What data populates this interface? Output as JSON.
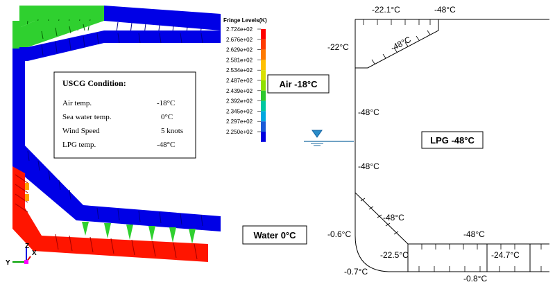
{
  "legend": {
    "title": "Fringe Levels(K)",
    "levels": [
      "2.724e+02",
      "2.676e+02",
      "2.629e+02",
      "2.581e+02",
      "2.534e+02",
      "2.487e+02",
      "2.439e+02",
      "2.392e+02",
      "2.345e+02",
      "2.297e+02",
      "2.250e+02"
    ],
    "colors": [
      "#ff0000",
      "#ff3a00",
      "#ff7a00",
      "#ffc000",
      "#d8e000",
      "#8fe000",
      "#2ec82e",
      "#00c8a0",
      "#00a8e0",
      "#1a5ad8",
      "#0000e0"
    ]
  },
  "uscg": {
    "title": "USCG Condition:",
    "rows": [
      {
        "label": "Air temp.",
        "value": "-18°C"
      },
      {
        "label": "Sea water temp.",
        "value": "0°C"
      },
      {
        "label": "Wind Speed",
        "value": "5 knots"
      },
      {
        "label": "LPG temp.",
        "value": "-48°C"
      }
    ]
  },
  "boxes": {
    "air": "Air -18°C",
    "water": "Water 0°C",
    "lpg": "LPG -48°C"
  },
  "axes": {
    "z": "Z",
    "y": "Y",
    "x": "X"
  },
  "section_labels": {
    "top_center": "-22.1°C",
    "top_right": "-48°C",
    "top_left": "-22°C",
    "hopper": "-48°C",
    "side_upper": "-48°C",
    "side_lower": "-48°C",
    "bilge_hopper": "-48°C",
    "bilge_side": "-0.6°C",
    "bottom_inner": "-48°C",
    "bottom_left": "-22.5°C",
    "bottom_right": "-24.7°C",
    "keel_left": "-0.7°C",
    "keel_bottom": "-0.8°C"
  },
  "colors": {
    "cold": "#0000e6",
    "warm": "#ff1500",
    "mid": "#2fd02f",
    "line": "#000000"
  }
}
